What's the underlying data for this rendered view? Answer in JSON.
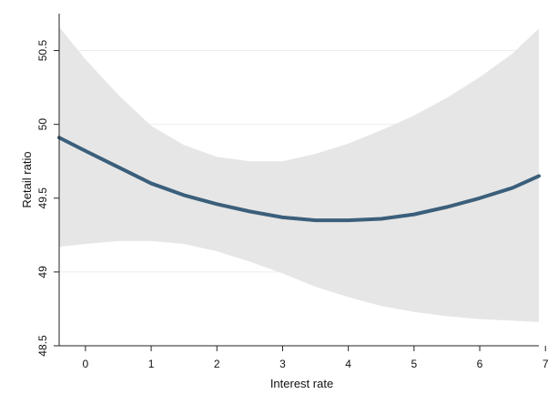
{
  "chart_data": {
    "type": "line",
    "title": "",
    "xlabel": "Interest rate",
    "ylabel": "Retail ratio",
    "xlim": [
      -0.4,
      6.9
    ],
    "ylim": [
      48.5,
      50.75
    ],
    "x_ticks": [
      0,
      1,
      2,
      3,
      4,
      5,
      6,
      7
    ],
    "x_tick_labels": [
      "0",
      "1",
      "2",
      "3",
      "4",
      "5",
      "6",
      "7"
    ],
    "y_ticks": [
      48.5,
      49,
      49.5,
      50,
      50.5
    ],
    "y_tick_labels": [
      "48.5",
      "49",
      "49.5",
      "50",
      "50.5"
    ],
    "grid": true,
    "legend": "none",
    "colors": {
      "line": "#3b5f7b",
      "band": "#e6e6e6",
      "grid": "#e8eef2",
      "axis": "#222222"
    },
    "series": [
      {
        "kind": "fitted-line",
        "x": [
          -0.4,
          0,
          0.5,
          1,
          1.5,
          2,
          2.5,
          3,
          3.5,
          4,
          4.5,
          5,
          5.5,
          6,
          6.5,
          6.9
        ],
        "y": [
          49.91,
          49.82,
          49.71,
          49.6,
          49.52,
          49.46,
          49.41,
          49.37,
          49.35,
          49.35,
          49.36,
          49.39,
          49.44,
          49.5,
          49.57,
          49.65
        ]
      },
      {
        "kind": "confidence-band",
        "x": [
          -0.4,
          0,
          0.5,
          1,
          1.5,
          2,
          2.5,
          3,
          3.5,
          4,
          4.5,
          5,
          5.5,
          6,
          6.5,
          6.9
        ],
        "upper": [
          50.66,
          50.44,
          50.2,
          49.99,
          49.86,
          49.78,
          49.75,
          49.75,
          49.8,
          49.87,
          49.96,
          50.06,
          50.18,
          50.32,
          50.48,
          50.65
        ],
        "lower": [
          49.17,
          49.19,
          49.21,
          49.21,
          49.19,
          49.14,
          49.07,
          48.99,
          48.9,
          48.83,
          48.77,
          48.73,
          48.7,
          48.68,
          48.67,
          48.66
        ]
      }
    ]
  }
}
